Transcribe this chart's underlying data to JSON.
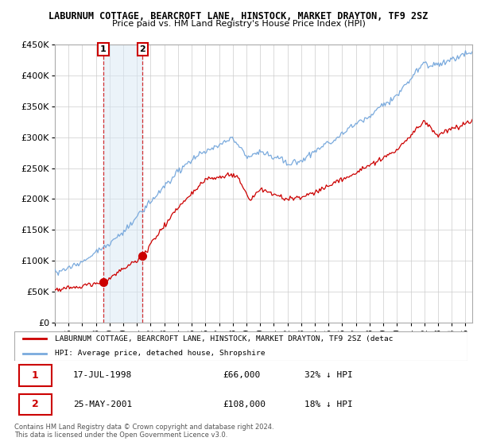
{
  "title": "LABURNUM COTTAGE, BEARCROFT LANE, HINSTOCK, MARKET DRAYTON, TF9 2SZ",
  "subtitle": "Price paid vs. HM Land Registry's House Price Index (HPI)",
  "ylabel_ticks": [
    "£0",
    "£50K",
    "£100K",
    "£150K",
    "£200K",
    "£250K",
    "£300K",
    "£350K",
    "£400K",
    "£450K"
  ],
  "ytick_vals": [
    0,
    50000,
    100000,
    150000,
    200000,
    250000,
    300000,
    350000,
    400000,
    450000
  ],
  "xlim": [
    1995.0,
    2025.5
  ],
  "ylim": [
    0,
    450000
  ],
  "purchase1_x": 1998.54,
  "purchase1_y": 66000,
  "purchase2_x": 2001.4,
  "purchase2_y": 108000,
  "red_line_color": "#cc0000",
  "blue_line_color": "#7aaadd",
  "marker_color": "#cc0000",
  "shade_color": "#d8e8f5",
  "grid_color": "#cccccc",
  "legend_label_red": "LABURNUM COTTAGE, BEARCROFT LANE, HINSTOCK, MARKET DRAYTON, TF9 2SZ (detac",
  "legend_label_blue": "HPI: Average price, detached house, Shropshire",
  "footer1": "Contains HM Land Registry data © Crown copyright and database right 2024.",
  "footer2": "This data is licensed under the Open Government Licence v3.0.",
  "table_row1": [
    "1",
    "17-JUL-1998",
    "£66,000",
    "32% ↓ HPI"
  ],
  "table_row2": [
    "2",
    "25-MAY-2001",
    "£108,000",
    "18% ↓ HPI"
  ]
}
